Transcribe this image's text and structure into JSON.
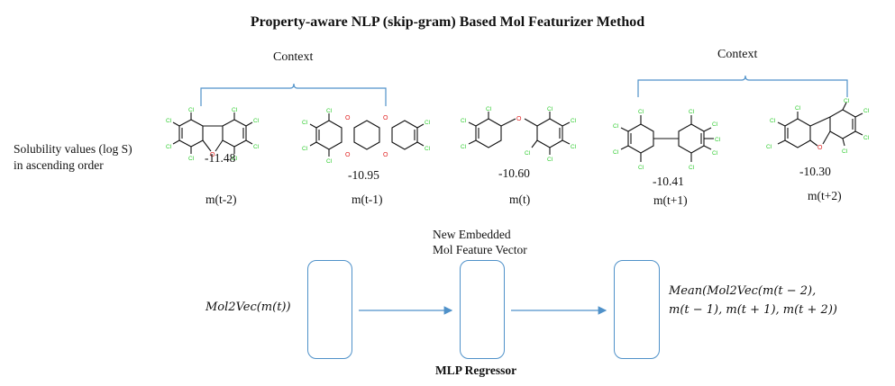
{
  "title": "Property-aware NLP (skip-gram) Based Mol Featurizer Method",
  "context_left": "Context",
  "context_right": "Context",
  "side_label": {
    "line1": "Solubility values (log S)",
    "line2": "in ascending order"
  },
  "molecules": [
    {
      "value": "-11.48",
      "label": "m(t-2)"
    },
    {
      "value": "-10.95",
      "label": "m(t-1)"
    },
    {
      "value": "-10.60",
      "label": "m(t)"
    },
    {
      "value": "-10.41",
      "label": "m(t+1)"
    },
    {
      "value": "-10.30",
      "label": "m(t+2)"
    }
  ],
  "atom_labels": {
    "chlorine": "Cl",
    "oxygen": "O"
  },
  "embedding_label": {
    "line1": "New Embedded",
    "line2": "Mol Feature Vector"
  },
  "input_formula": "Mol2Vec(m(t))",
  "output_formula": {
    "line1": "Mean(Mol2Vec(m(t − 2),",
    "line2": "m(t − 1), m(t + 1), m(t + 2))"
  },
  "regressor_label": "MLP Regressor",
  "colors": {
    "accent": "#4f91c9",
    "chlorine": "#2ecc2e",
    "oxygen": "#e02020"
  }
}
